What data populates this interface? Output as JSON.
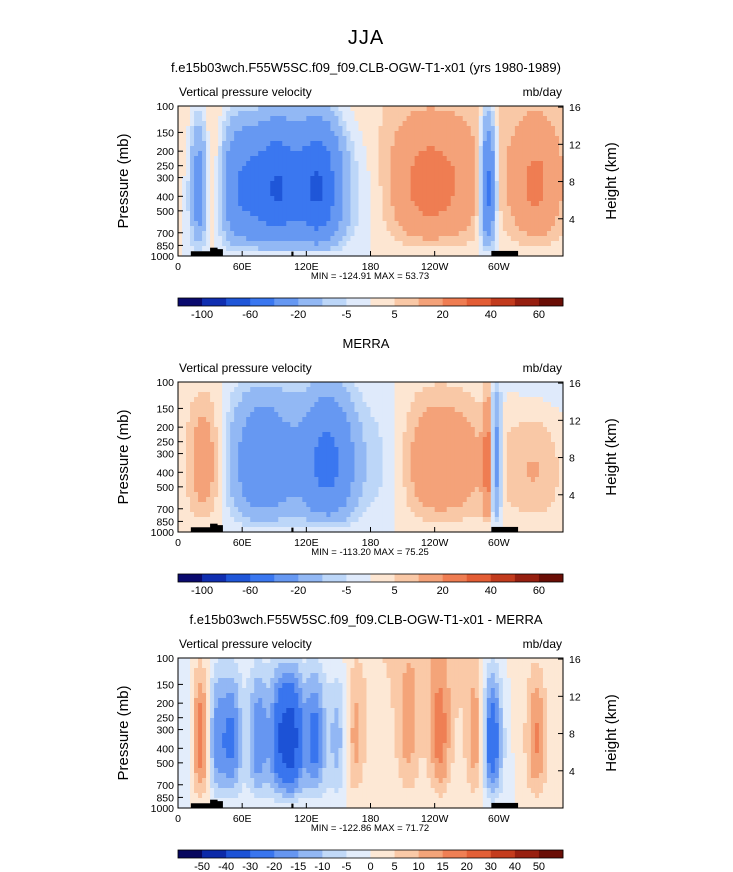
{
  "figure": {
    "season": "JJA"
  },
  "chart_data": [
    {
      "type": "heatmap",
      "title": "f.e15b03wch.F55W5SC.f09_f09.CLB-OGW-T1-x01 (yrs 1980-1989)",
      "variable": "Vertical pressure velocity",
      "units": "mb/day",
      "ylabel": "Pressure (mb)",
      "ylabel_right": "Height (km)",
      "xticks": [
        "0",
        "60E",
        "120E",
        "180",
        "120W",
        "60W"
      ],
      "yticks": [
        "100",
        "150",
        "200",
        "250",
        "300",
        "400",
        "500",
        "700",
        "850",
        "1000"
      ],
      "height_ticks": [
        "16",
        "12",
        "8",
        "4"
      ],
      "min": "-124.91",
      "max": "53.73",
      "minmax_text": "MIN = -124.91   MAX =  53.73",
      "colorbar_levels": [
        "-100",
        "-60",
        "-20",
        "-5",
        "5",
        "20",
        "40",
        "60"
      ]
    },
    {
      "type": "heatmap",
      "title": "MERRA",
      "variable": "Vertical pressure velocity",
      "units": "mb/day",
      "ylabel": "Pressure (mb)",
      "ylabel_right": "Height (km)",
      "xticks": [
        "0",
        "60E",
        "120E",
        "180",
        "120W",
        "60W"
      ],
      "yticks": [
        "100",
        "150",
        "200",
        "250",
        "300",
        "400",
        "500",
        "700",
        "850",
        "1000"
      ],
      "height_ticks": [
        "16",
        "12",
        "8",
        "4"
      ],
      "min": "-113.20",
      "max": "75.25",
      "minmax_text": "MIN = -113.20   MAX =  75.25",
      "colorbar_levels": [
        "-100",
        "-60",
        "-20",
        "-5",
        "5",
        "20",
        "40",
        "60"
      ]
    },
    {
      "type": "heatmap",
      "title": "f.e15b03wch.F55W5SC.f09_f09.CLB-OGW-T1-x01 - MERRA",
      "variable": "Vertical pressure velocity",
      "units": "mb/day",
      "ylabel": "Pressure (mb)",
      "ylabel_right": "Height (km)",
      "xticks": [
        "0",
        "60E",
        "120E",
        "180",
        "120W",
        "60W"
      ],
      "yticks": [
        "100",
        "150",
        "200",
        "250",
        "300",
        "400",
        "500",
        "700",
        "850",
        "1000"
      ],
      "height_ticks": [
        "16",
        "12",
        "8",
        "4"
      ],
      "min": "-122.86",
      "max": "71.72",
      "minmax_text": "MIN = -122.86   MAX =  71.72",
      "colorbar_levels": [
        "-50",
        "-40",
        "-30",
        "-20",
        "-15",
        "-10",
        "-5",
        "0",
        "5",
        "10",
        "15",
        "20",
        "30",
        "40",
        "50"
      ]
    }
  ],
  "colors": {
    "palette": [
      "#0a0a6e",
      "#102eb0",
      "#1f56d8",
      "#3a77f0",
      "#6698f2",
      "#92b8f4",
      "#bcd6f8",
      "#dfeafb",
      "#fde6d2",
      "#f9c8a6",
      "#f4a279",
      "#ef7d52",
      "#e35d35",
      "#c23b1d",
      "#961f10",
      "#6a0e06"
    ],
    "diff_palette": [
      "#07075e",
      "#0c2aa8",
      "#1c52d6",
      "#3975ee",
      "#6696f1",
      "#92b7f4",
      "#c1d9f8",
      "#e3edfb",
      "#fde8d5",
      "#fac9a7",
      "#f4a479",
      "#ef7f54",
      "#e35f36",
      "#c43c1d",
      "#982010",
      "#6a0e06"
    ],
    "terrain": "#000000"
  }
}
